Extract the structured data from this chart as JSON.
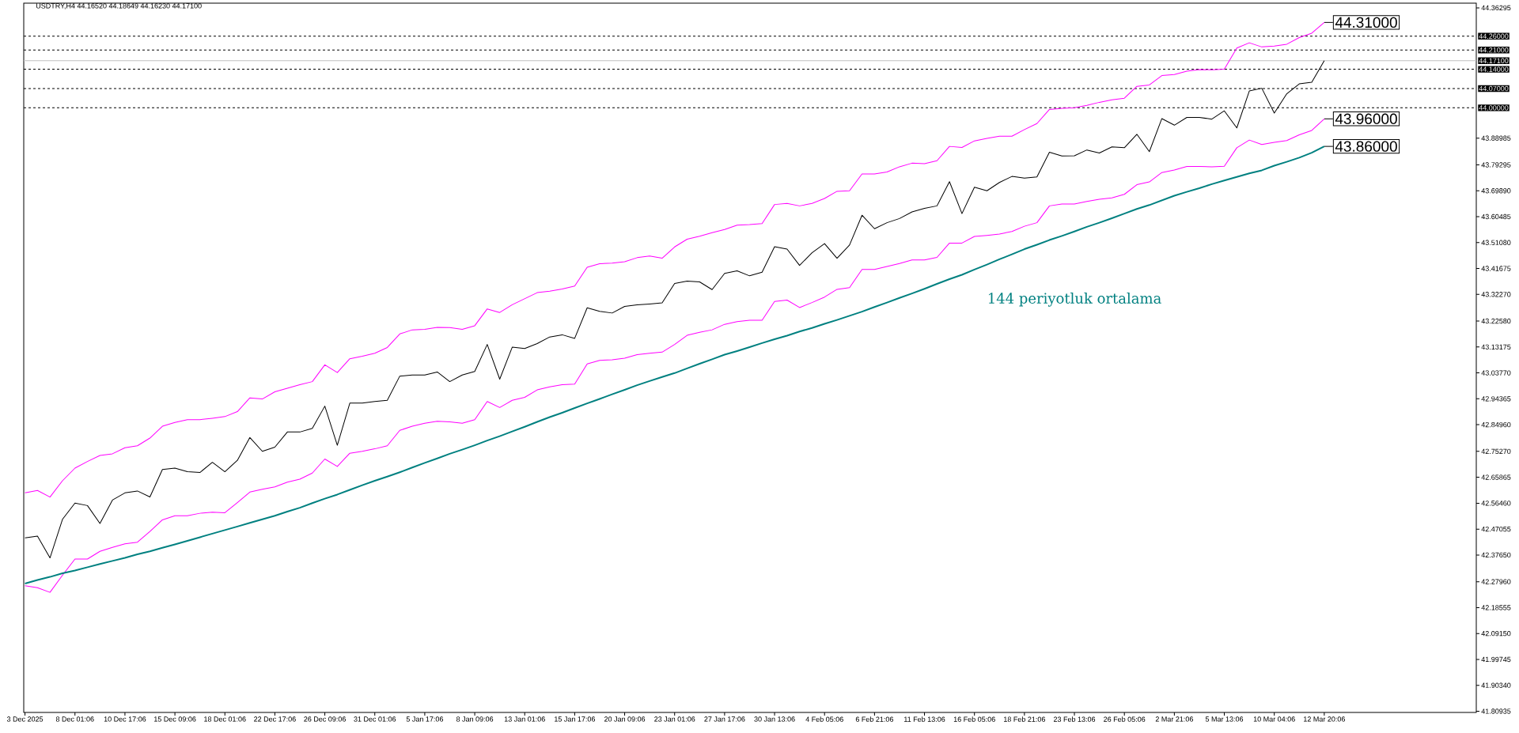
{
  "chart_data": {
    "type": "line",
    "title": "USDTRY,H4  44.16520 44.18649 44.16230 44.17100",
    "categories": [
      "3 Dec 2025",
      null,
      null,
      null,
      "8 Dec 01:06",
      null,
      null,
      null,
      "10 Dec 17:06",
      null,
      null,
      null,
      "15 Dec 09:06",
      null,
      null,
      null,
      "18 Dec 01:06",
      null,
      null,
      null,
      "22 Dec 17:06",
      null,
      null,
      null,
      "26 Dec 09:06",
      null,
      null,
      null,
      "31 Dec 01:06",
      null,
      null,
      null,
      "5 Jan 17:06",
      null,
      null,
      null,
      "8 Jan 09:06",
      null,
      null,
      null,
      "13 Jan 01:06",
      null,
      null,
      null,
      "15 Jan 17:06",
      null,
      null,
      null,
      "20 Jan 09:06",
      null,
      null,
      null,
      "23 Jan 01:06",
      null,
      null,
      null,
      "27 Jan 17:06",
      null,
      null,
      null,
      "30 Jan 13:06",
      null,
      null,
      null,
      "4 Feb 05:06",
      null,
      null,
      null,
      "6 Feb 21:06",
      null,
      null,
      null,
      "11 Feb 13:06",
      null,
      null,
      null,
      "16 Feb 05:06",
      null,
      null,
      null,
      "18 Feb 21:06",
      null,
      null,
      null,
      "23 Feb 13:06",
      null,
      null,
      null,
      "26 Feb 05:06",
      null,
      null,
      null,
      "2 Mar 21:06",
      null,
      null,
      null,
      "5 Mar 13:06",
      null,
      null,
      null,
      "10 Mar 04:06",
      null,
      null,
      null,
      "12 Mar 20:06"
    ],
    "ylim": [
      41.805,
      44.38
    ],
    "marker": "none",
    "line_style": "solid",
    "yticks": [
      {
        "value": 44.36295,
        "label": "44.36295"
      },
      {
        "value": 43.88985,
        "label": "43.88985"
      },
      {
        "value": 43.79295,
        "label": "43.79295"
      },
      {
        "value": 43.6989,
        "label": "43.69890"
      },
      {
        "value": 43.60485,
        "label": "43.60485"
      },
      {
        "value": 43.5108,
        "label": "43.51080"
      },
      {
        "value": 43.41675,
        "label": "43.41675"
      },
      {
        "value": 43.3227,
        "label": "43.32270"
      },
      {
        "value": 43.2258,
        "label": "43.22580"
      },
      {
        "value": 43.13175,
        "label": "43.13175"
      },
      {
        "value": 43.0377,
        "label": "43.03770"
      },
      {
        "value": 42.94365,
        "label": "42.94365"
      },
      {
        "value": 42.8496,
        "label": "42.84960"
      },
      {
        "value": 42.7527,
        "label": "42.75270"
      },
      {
        "value": 42.65865,
        "label": "42.65865"
      },
      {
        "value": 42.5646,
        "label": "42.56460"
      },
      {
        "value": 42.47055,
        "label": "42.47055"
      },
      {
        "value": 42.3765,
        "label": "42.37650"
      },
      {
        "value": 42.2796,
        "label": "42.27960"
      },
      {
        "value": 42.18555,
        "label": "42.18555"
      },
      {
        "value": 42.0915,
        "label": "42.09150"
      },
      {
        "value": 41.99745,
        "label": "41.99745"
      },
      {
        "value": 41.9034,
        "label": "41.90340"
      },
      {
        "value": 41.80935,
        "label": "41.80935"
      }
    ],
    "ref_lines": [
      {
        "axis": "y",
        "value": 44.26,
        "label": "44.26000",
        "color": "#000000",
        "line_style": "dashed"
      },
      {
        "axis": "y",
        "value": 44.21,
        "label": "44.21000",
        "color": "#000000",
        "line_style": "dashed"
      },
      {
        "axis": "y",
        "value": 44.171,
        "label": "44.17100",
        "color": "#c0c0c0",
        "line_style": "solid"
      },
      {
        "axis": "y",
        "value": 44.14,
        "label": "44.14000",
        "color": "#000000",
        "line_style": "dashed"
      },
      {
        "axis": "y",
        "value": 44.07,
        "label": "44.07000",
        "color": "#000000",
        "line_style": "dashed"
      },
      {
        "axis": "y",
        "value": 44.0,
        "label": "44.00000",
        "color": "#000000",
        "line_style": "dashed"
      }
    ],
    "series": [
      {
        "color": "#000000",
        "values": [
          42.439,
          42.445,
          42.366,
          42.506,
          42.565,
          42.556,
          42.491,
          42.576,
          42.602,
          42.609,
          42.587,
          42.687,
          42.692,
          42.679,
          42.676,
          42.713,
          42.679,
          42.72,
          42.803,
          42.753,
          42.768,
          42.823,
          42.823,
          42.836,
          42.917,
          42.775,
          42.928,
          42.928,
          42.934,
          42.938,
          43.026,
          43.03,
          43.03,
          43.041,
          43.006,
          43.03,
          43.043,
          43.141,
          43.015,
          43.131,
          43.126,
          43.144,
          43.168,
          43.176,
          43.163,
          43.274,
          43.261,
          43.255,
          43.279,
          43.285,
          43.288,
          43.292,
          43.362,
          43.371,
          43.368,
          43.34,
          43.399,
          43.408,
          43.39,
          43.403,
          43.496,
          43.487,
          43.428,
          43.474,
          43.507,
          43.454,
          43.502,
          43.61,
          43.561,
          43.583,
          43.598,
          43.622,
          43.635,
          43.644,
          43.732,
          43.616,
          43.712,
          43.699,
          43.729,
          43.751,
          43.745,
          43.749,
          43.839,
          43.825,
          43.826,
          43.847,
          43.836,
          43.858,
          43.855,
          43.904,
          43.841,
          43.961,
          43.937,
          43.965,
          43.965,
          43.959,
          43.989,
          43.927,
          44.061,
          44.071,
          43.981,
          44.051,
          44.087,
          44.093,
          44.171
        ]
      },
      {
        "color": "#ff00ff",
        "values": [
          42.602,
          42.611,
          42.587,
          42.646,
          42.692,
          42.716,
          42.738,
          42.744,
          42.766,
          42.773,
          42.801,
          42.844,
          42.858,
          42.868,
          42.868,
          42.873,
          42.879,
          42.897,
          42.947,
          42.943,
          42.969,
          42.982,
          42.995,
          43.006,
          43.067,
          43.039,
          43.089,
          43.098,
          43.109,
          43.13,
          43.179,
          43.194,
          43.196,
          43.203,
          43.202,
          43.196,
          43.209,
          43.27,
          43.257,
          43.285,
          43.307,
          43.329,
          43.334,
          43.342,
          43.353,
          43.421,
          43.434,
          43.436,
          43.441,
          43.456,
          43.462,
          43.454,
          43.495,
          43.523,
          43.534,
          43.547,
          43.558,
          43.574,
          43.576,
          43.58,
          43.649,
          43.653,
          43.644,
          43.653,
          43.671,
          43.697,
          43.699,
          43.76,
          43.76,
          43.767,
          43.786,
          43.799,
          43.797,
          43.808,
          43.86,
          43.856,
          43.88,
          43.889,
          43.897,
          43.897,
          43.921,
          43.943,
          43.994,
          43.998,
          44.0,
          44.009,
          44.02,
          44.029,
          44.035,
          44.078,
          44.083,
          44.117,
          44.121,
          44.133,
          44.139,
          44.138,
          44.14,
          44.217,
          44.236,
          44.221,
          44.224,
          44.231,
          44.255,
          44.271,
          44.31
        ],
        "value_labels": [
          null,
          null,
          null,
          null,
          null,
          null,
          null,
          null,
          null,
          null,
          null,
          null,
          null,
          null,
          null,
          null,
          null,
          null,
          null,
          null,
          null,
          null,
          null,
          null,
          null,
          null,
          null,
          null,
          null,
          null,
          null,
          null,
          null,
          null,
          null,
          null,
          null,
          null,
          null,
          null,
          null,
          null,
          null,
          null,
          null,
          null,
          null,
          null,
          null,
          null,
          null,
          null,
          null,
          null,
          null,
          null,
          null,
          null,
          null,
          null,
          null,
          null,
          null,
          null,
          null,
          null,
          null,
          null,
          null,
          null,
          null,
          null,
          null,
          null,
          null,
          null,
          null,
          null,
          null,
          null,
          null,
          null,
          null,
          null,
          null,
          null,
          null,
          null,
          null,
          null,
          null,
          null,
          null,
          null,
          null,
          null,
          null,
          null,
          null,
          null,
          null,
          null,
          null,
          null,
          "44.31000"
        ]
      },
      {
        "color": "#ff00ff",
        "values": [
          42.265,
          42.258,
          42.241,
          42.303,
          42.362,
          42.362,
          42.39,
          42.404,
          42.417,
          42.423,
          42.462,
          42.504,
          42.519,
          42.519,
          42.528,
          42.532,
          42.53,
          42.567,
          42.605,
          42.615,
          42.624,
          42.641,
          42.652,
          42.674,
          42.725,
          42.698,
          42.746,
          42.753,
          42.762,
          42.773,
          42.829,
          42.844,
          42.855,
          42.862,
          42.86,
          42.855,
          42.868,
          42.934,
          42.912,
          42.938,
          42.949,
          42.976,
          42.987,
          42.995,
          42.997,
          43.07,
          43.083,
          43.085,
          43.091,
          43.104,
          43.109,
          43.113,
          43.141,
          43.174,
          43.185,
          43.194,
          43.214,
          43.224,
          43.229,
          43.229,
          43.297,
          43.302,
          43.275,
          43.293,
          43.313,
          43.341,
          43.347,
          43.413,
          43.413,
          43.424,
          43.435,
          43.448,
          43.448,
          43.457,
          43.509,
          43.509,
          43.533,
          43.537,
          43.542,
          43.551,
          43.57,
          43.583,
          43.644,
          43.651,
          43.651,
          43.66,
          43.668,
          43.673,
          43.686,
          43.721,
          43.731,
          43.765,
          43.774,
          43.787,
          43.787,
          43.786,
          43.788,
          43.855,
          43.883,
          43.867,
          43.875,
          43.881,
          43.902,
          43.918,
          43.96
        ],
        "value_labels": [
          null,
          null,
          null,
          null,
          null,
          null,
          null,
          null,
          null,
          null,
          null,
          null,
          null,
          null,
          null,
          null,
          null,
          null,
          null,
          null,
          null,
          null,
          null,
          null,
          null,
          null,
          null,
          null,
          null,
          null,
          null,
          null,
          null,
          null,
          null,
          null,
          null,
          null,
          null,
          null,
          null,
          null,
          null,
          null,
          null,
          null,
          null,
          null,
          null,
          null,
          null,
          null,
          null,
          null,
          null,
          null,
          null,
          null,
          null,
          null,
          null,
          null,
          null,
          null,
          null,
          null,
          null,
          null,
          null,
          null,
          null,
          null,
          null,
          null,
          null,
          null,
          null,
          null,
          null,
          null,
          null,
          null,
          null,
          null,
          null,
          null,
          null,
          null,
          null,
          null,
          null,
          null,
          null,
          null,
          null,
          null,
          null,
          null,
          null,
          null,
          null,
          null,
          null,
          null,
          "43.96000"
        ]
      },
      {
        "name": "144 periyotluk ortalama",
        "color": "#008080",
        "values": [
          42.273,
          42.286,
          42.297,
          42.31,
          42.32,
          42.332,
          42.344,
          42.355,
          42.366,
          42.379,
          42.39,
          42.403,
          42.415,
          42.428,
          42.441,
          42.454,
          42.467,
          42.48,
          42.493,
          42.506,
          42.519,
          42.534,
          42.548,
          42.565,
          42.581,
          42.596,
          42.613,
          42.63,
          42.646,
          42.661,
          42.677,
          42.694,
          42.711,
          42.727,
          42.744,
          42.759,
          42.775,
          42.792,
          42.808,
          42.825,
          42.842,
          42.86,
          42.877,
          42.893,
          42.91,
          42.927,
          42.943,
          42.96,
          42.976,
          42.993,
          43.008,
          43.023,
          43.037,
          43.054,
          43.071,
          43.087,
          43.104,
          43.117,
          43.131,
          43.146,
          43.16,
          43.173,
          43.188,
          43.201,
          43.216,
          43.23,
          43.245,
          43.26,
          43.277,
          43.293,
          43.31,
          43.326,
          43.343,
          43.361,
          43.378,
          43.394,
          43.413,
          43.431,
          43.45,
          43.468,
          43.487,
          43.503,
          43.52,
          43.535,
          43.551,
          43.568,
          43.583,
          43.599,
          43.616,
          43.633,
          43.647,
          43.664,
          43.681,
          43.695,
          43.708,
          43.723,
          43.736,
          43.749,
          43.762,
          43.773,
          43.79,
          43.804,
          43.819,
          43.837,
          43.86
        ],
        "value_labels": [
          null,
          null,
          null,
          null,
          null,
          null,
          null,
          null,
          null,
          null,
          null,
          null,
          null,
          null,
          null,
          null,
          null,
          null,
          null,
          null,
          null,
          null,
          null,
          null,
          null,
          null,
          null,
          null,
          null,
          null,
          null,
          null,
          null,
          null,
          null,
          null,
          null,
          null,
          null,
          null,
          null,
          null,
          null,
          null,
          null,
          null,
          null,
          null,
          null,
          null,
          null,
          null,
          null,
          null,
          null,
          null,
          null,
          null,
          null,
          null,
          null,
          null,
          null,
          null,
          null,
          null,
          null,
          null,
          null,
          null,
          null,
          null,
          null,
          null,
          null,
          null,
          null,
          null,
          null,
          null,
          null,
          null,
          null,
          null,
          null,
          null,
          null,
          null,
          null,
          null,
          null,
          null,
          null,
          null,
          null,
          null,
          null,
          null,
          null,
          null,
          null,
          null,
          null,
          null,
          "43.86000"
        ]
      }
    ]
  }
}
